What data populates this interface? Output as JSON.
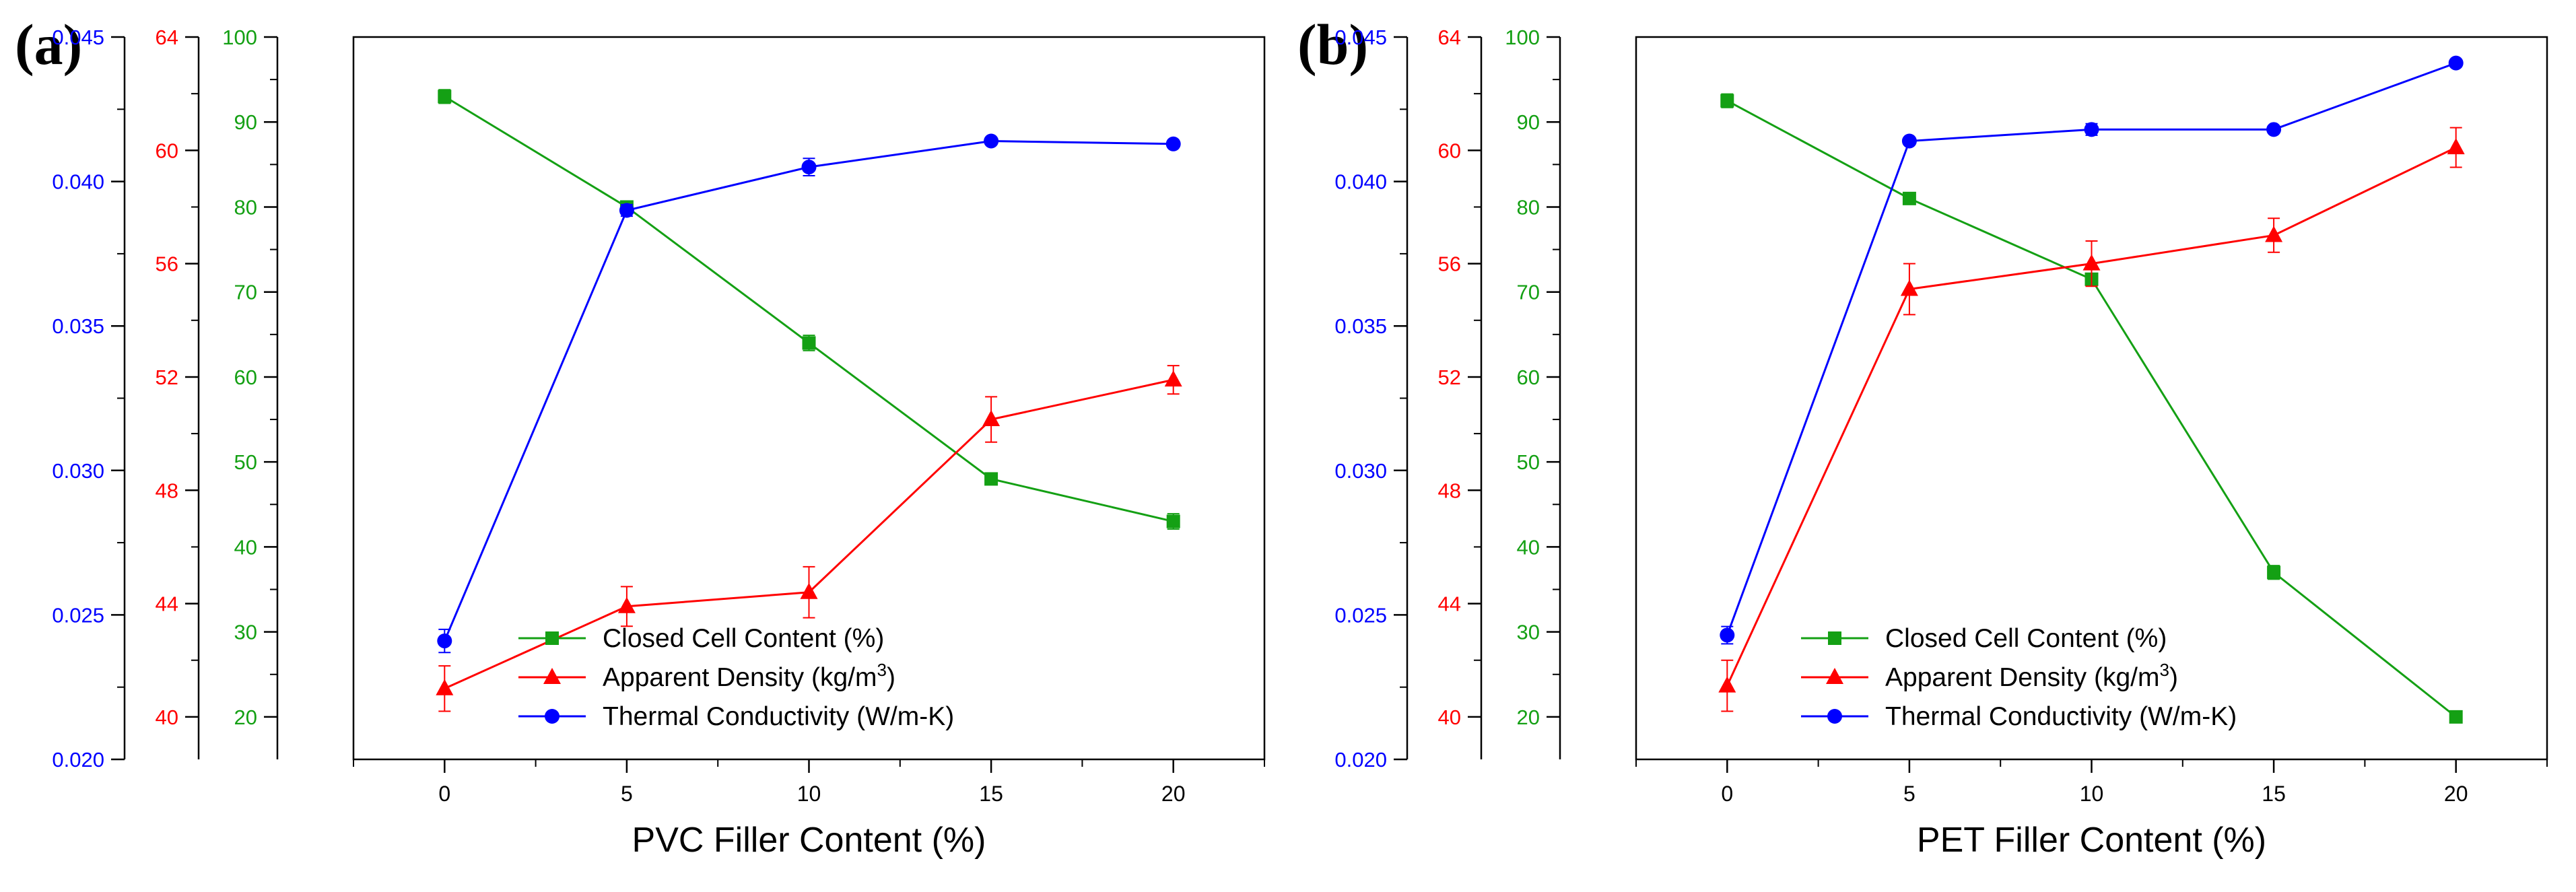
{
  "chart_data": [
    {
      "type": "line",
      "panel_label": "(a)",
      "xlabel": "PVC Filler Content (%)",
      "x": [
        0,
        5,
        10,
        15,
        20
      ],
      "xticks": [
        "0",
        "5",
        "10",
        "15",
        "20"
      ],
      "xlim": [
        -2.5,
        22.5
      ],
      "axes": [
        {
          "id": "cc",
          "color": "#14a014",
          "ylim": [
            15,
            100
          ],
          "ticks": [
            20,
            30,
            40,
            50,
            60,
            70,
            80,
            90,
            100
          ],
          "tick_labels": [
            "20",
            "30",
            "40",
            "50",
            "60",
            "70",
            "80",
            "90",
            "100"
          ]
        },
        {
          "id": "den",
          "color": "#ff0000",
          "ylim": [
            38.5,
            64
          ],
          "ticks": [
            40,
            44,
            48,
            52,
            56,
            60,
            64
          ],
          "tick_labels": [
            "40",
            "44",
            "48",
            "52",
            "56",
            "60",
            "64"
          ]
        },
        {
          "id": "tc",
          "color": "#0000ff",
          "ylim": [
            0.02,
            0.045
          ],
          "ticks": [
            0.02,
            0.025,
            0.03,
            0.035,
            0.04,
            0.045
          ],
          "tick_labels": [
            "0.020",
            "0.025",
            "0.030",
            "0.035",
            "0.040",
            "0.045"
          ]
        }
      ],
      "series": [
        {
          "name": "Closed Cell Content (%)",
          "axis": "cc",
          "color": "#14a014",
          "marker": "square",
          "values": [
            93,
            80,
            64,
            48,
            43
          ],
          "errors": [
            0.8,
            0.6,
            0.9,
            0.4,
            0.9
          ]
        },
        {
          "name": "Apparent Density (kg/m",
          "name_sup": "3",
          "name_after": ")",
          "axis": "den",
          "color": "#ff0000",
          "marker": "triangle",
          "values": [
            41,
            43.9,
            44.4,
            50.5,
            51.9
          ],
          "errors": [
            0.8,
            0.7,
            0.9,
            0.8,
            0.5
          ]
        },
        {
          "name": "Thermal Conductivity (W/m-K)",
          "axis": "tc",
          "color": "#0000ff",
          "marker": "circle",
          "values": [
            0.0241,
            0.039,
            0.0405,
            0.0414,
            0.0413
          ],
          "errors": [
            0.0004,
            0.0002,
            0.0003,
            0.0001,
            0.0001
          ]
        }
      ],
      "legend_position": "bottom-center"
    },
    {
      "type": "line",
      "panel_label": "(b)",
      "xlabel": "PET Filler Content (%)",
      "x": [
        0,
        5,
        10,
        15,
        20
      ],
      "xticks": [
        "0",
        "5",
        "10",
        "15",
        "20"
      ],
      "xlim": [
        -2.5,
        22.5
      ],
      "axes": [
        {
          "id": "cc",
          "color": "#14a014",
          "ylim": [
            15,
            100
          ],
          "ticks": [
            20,
            30,
            40,
            50,
            60,
            70,
            80,
            90,
            100
          ],
          "tick_labels": [
            "20",
            "30",
            "40",
            "50",
            "60",
            "70",
            "80",
            "90",
            "100"
          ]
        },
        {
          "id": "den",
          "color": "#ff0000",
          "ylim": [
            38.5,
            64
          ],
          "ticks": [
            40,
            44,
            48,
            52,
            56,
            60,
            64
          ],
          "tick_labels": [
            "40",
            "44",
            "48",
            "52",
            "56",
            "60",
            "64"
          ]
        },
        {
          "id": "tc",
          "color": "#0000ff",
          "ylim": [
            0.02,
            0.045
          ],
          "ticks": [
            0.02,
            0.025,
            0.03,
            0.035,
            0.04,
            0.045
          ],
          "tick_labels": [
            "0.020",
            "0.025",
            "0.030",
            "0.035",
            "0.040",
            "0.045"
          ]
        }
      ],
      "series": [
        {
          "name": "Closed Cell Content (%)",
          "axis": "cc",
          "color": "#14a014",
          "marker": "square",
          "values": [
            92.5,
            81,
            71.5,
            37,
            20
          ],
          "errors": [
            0.8,
            0.4,
            0.6,
            0.8,
            0.4
          ]
        },
        {
          "name": "Apparent Density (kg/m",
          "name_sup": "3",
          "name_after": ")",
          "axis": "den",
          "color": "#ff0000",
          "marker": "triangle",
          "values": [
            41.1,
            55.1,
            56,
            57,
            60.1
          ],
          "errors": [
            0.9,
            0.9,
            0.8,
            0.6,
            0.7
          ]
        },
        {
          "name": "Thermal Conductivity (W/m-K)",
          "axis": "tc",
          "color": "#0000ff",
          "marker": "circle",
          "values": [
            0.0243,
            0.0414,
            0.0418,
            0.0418,
            0.0441
          ],
          "errors": [
            0.0003,
            0.0001,
            0.0002,
            0.0001,
            0.0001
          ]
        }
      ],
      "legend_position": "bottom-center"
    }
  ]
}
